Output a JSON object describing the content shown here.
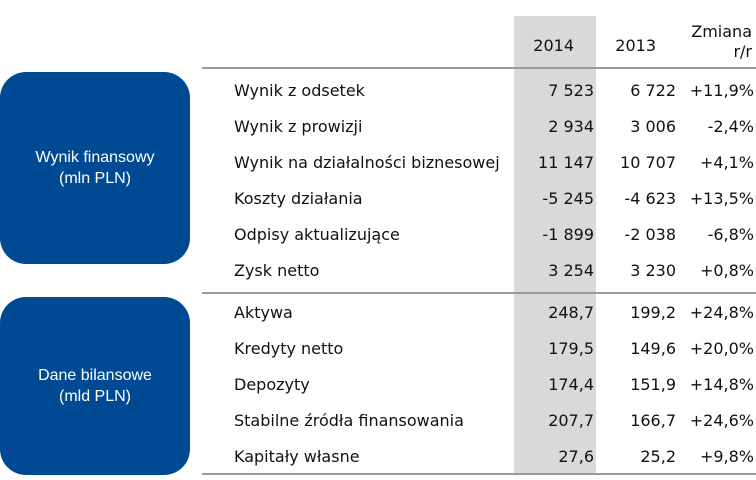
{
  "header": {
    "col_2014": "2014",
    "col_2013": "2013",
    "col_change_line1": "Zmiana",
    "col_change_line2": "r/r"
  },
  "sections": [
    {
      "title_line1": "Wynik finansowy",
      "title_line2": "(mln PLN)",
      "rows": [
        {
          "label": "Wynik z odsetek",
          "v2014": "7 523",
          "v2013": "6 722",
          "change": "+11,9%"
        },
        {
          "label": "Wynik z prowizji",
          "v2014": "2 934",
          "v2013": "3 006",
          "change": "-2,4%"
        },
        {
          "label": "Wynik na działalności biznesowej",
          "v2014": "11 147",
          "v2013": "10 707",
          "change": "+4,1%"
        },
        {
          "label": "Koszty działania",
          "v2014": "-5 245",
          "v2013": "-4 623",
          "change": "+13,5%"
        },
        {
          "label": "Odpisy aktualizujące",
          "v2014": "-1 899",
          "v2013": "-2 038",
          "change": "-6,8%"
        },
        {
          "label": "Zysk netto",
          "v2014": "3 254",
          "v2013": "3 230",
          "change": "+0,8%"
        }
      ]
    },
    {
      "title_line1": "Dane bilansowe",
      "title_line2": "(mld PLN)",
      "rows": [
        {
          "label": "Aktywa",
          "v2014": "248,7",
          "v2013": "199,2",
          "change": "+24,8%"
        },
        {
          "label": "Kredyty netto",
          "v2014": "179,5",
          "v2013": "149,6",
          "change": "+20,0%"
        },
        {
          "label": "Depozyty",
          "v2014": "174,4",
          "v2013": "151,9",
          "change": "+14,8%"
        },
        {
          "label": "Stabilne źródła finansowania",
          "v2014": "207,7",
          "v2013": "166,7",
          "change": "+24,6%"
        },
        {
          "label": "Kapitały własne",
          "v2014": "27,6",
          "v2013": "25,2",
          "change": "+9,8%"
        }
      ]
    }
  ]
}
